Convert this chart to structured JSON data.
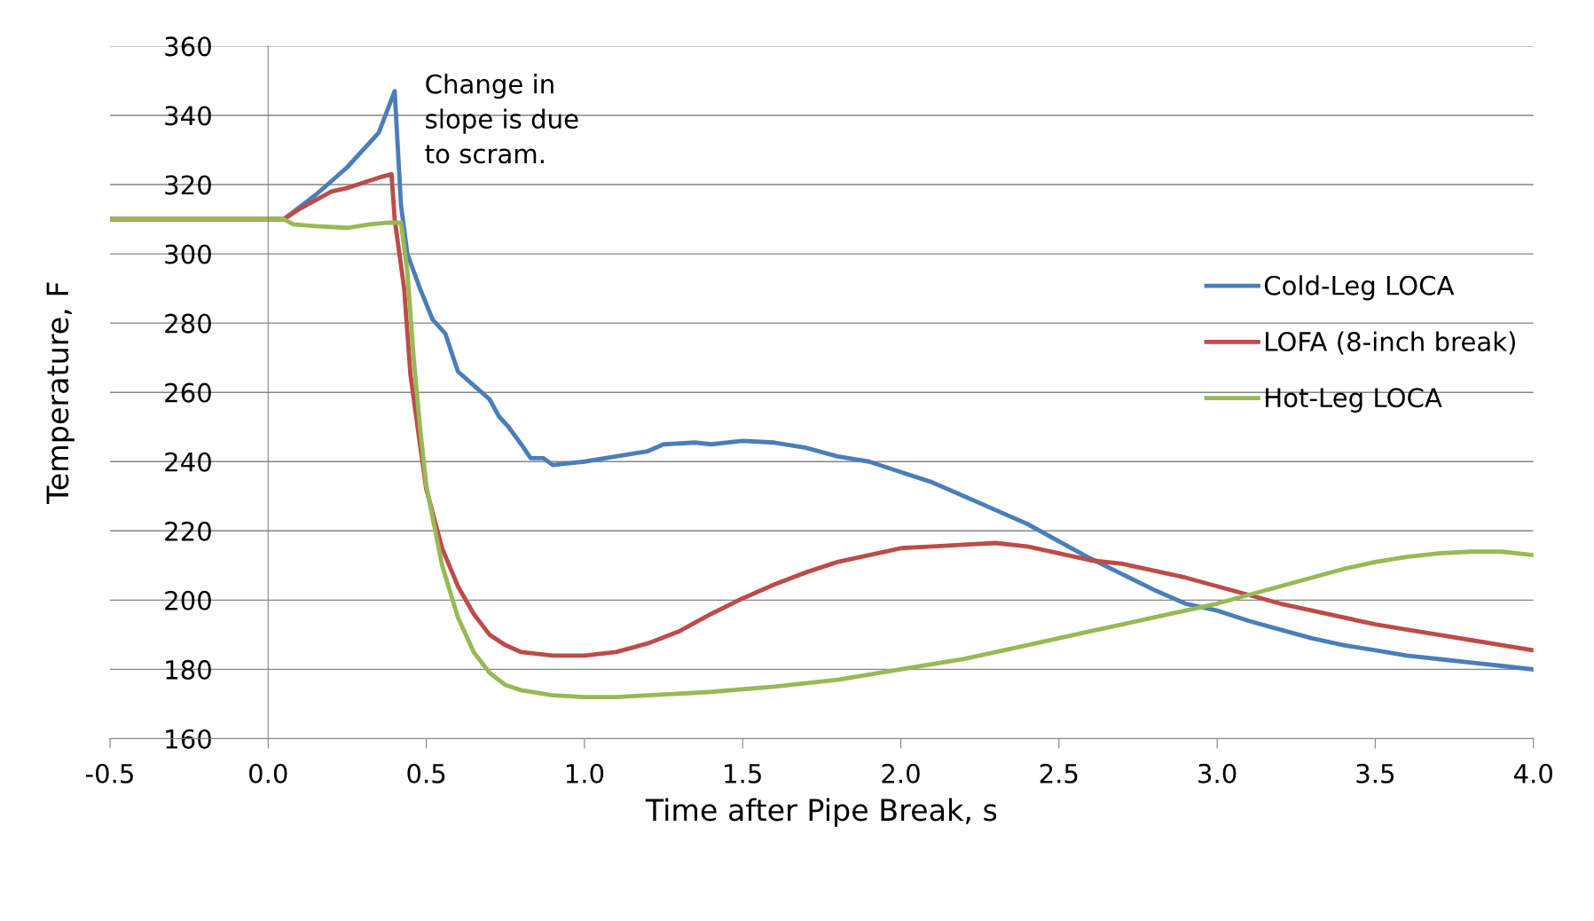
{
  "chart_data": {
    "type": "line",
    "xlabel": "Time after Pipe Break, s",
    "ylabel": "Temperature, F",
    "xlim": [
      -0.5,
      4.0
    ],
    "xticks": [
      {
        "value": -0.5,
        "label": "-0.5"
      },
      {
        "value": 0,
        "label": "0.0"
      },
      {
        "value": 0.5,
        "label": "0.5"
      },
      {
        "value": 1,
        "label": "1.0"
      },
      {
        "value": 1.5,
        "label": "1.5"
      },
      {
        "value": 2,
        "label": "2.0"
      },
      {
        "value": 2.5,
        "label": "2.5"
      },
      {
        "value": 3,
        "label": "3.0"
      },
      {
        "value": 3.5,
        "label": "3.5"
      },
      {
        "value": 4,
        "label": "4.0"
      }
    ],
    "ylim": [
      160,
      360
    ],
    "yticks": [
      160,
      180,
      200,
      220,
      240,
      260,
      280,
      300,
      320,
      340,
      360
    ],
    "grid": "y",
    "legend": "right",
    "marker": "none",
    "line_style": "solid",
    "annotations": [
      "Change in\nslope is due\nto scram."
    ],
    "series": [
      {
        "name": "Cold-Leg LOCA",
        "color": "#4a7ebb",
        "x": [
          -0.5,
          0.0,
          0.05,
          0.15,
          0.25,
          0.35,
          0.4,
          0.42,
          0.44,
          0.48,
          0.52,
          0.56,
          0.6,
          0.65,
          0.7,
          0.73,
          0.76,
          0.8,
          0.83,
          0.87,
          0.9,
          0.95,
          1.0,
          1.1,
          1.2,
          1.25,
          1.35,
          1.4,
          1.5,
          1.6,
          1.7,
          1.8,
          1.9,
          2.0,
          2.1,
          2.2,
          2.3,
          2.4,
          2.5,
          2.6,
          2.7,
          2.8,
          2.9,
          3.0,
          3.1,
          3.2,
          3.3,
          3.4,
          3.5,
          3.6,
          3.7,
          3.8,
          3.9,
          4.0
        ],
        "values": [
          310,
          310,
          310,
          317,
          325,
          335,
          347,
          314,
          300,
          290,
          281,
          277,
          266,
          262,
          258,
          253,
          250,
          245,
          241,
          241,
          239,
          239.5,
          240,
          241.5,
          243,
          245,
          245.5,
          245,
          246,
          245.5,
          244,
          241.5,
          240,
          237,
          234,
          230,
          226,
          222,
          217,
          212,
          207.5,
          203,
          199,
          197,
          194,
          191.5,
          189,
          187,
          185.5,
          184,
          183,
          182,
          181,
          180
        ]
      },
      {
        "name": "LOFA (8-inch break)",
        "color": "#be4b48",
        "x": [
          -0.5,
          0.0,
          0.05,
          0.1,
          0.15,
          0.2,
          0.25,
          0.3,
          0.35,
          0.39,
          0.4,
          0.43,
          0.45,
          0.48,
          0.5,
          0.55,
          0.6,
          0.65,
          0.7,
          0.75,
          0.8,
          0.9,
          1.0,
          1.1,
          1.2,
          1.3,
          1.4,
          1.5,
          1.6,
          1.7,
          1.8,
          1.9,
          2.0,
          2.1,
          2.2,
          2.3,
          2.4,
          2.5,
          2.6,
          2.7,
          2.8,
          2.9,
          3.0,
          3.1,
          3.2,
          3.3,
          3.4,
          3.5,
          3.6,
          3.7,
          3.8,
          3.9,
          4.0
        ],
        "values": [
          310,
          310,
          310,
          313,
          315.5,
          318,
          319,
          320.5,
          322,
          323,
          310,
          290,
          265,
          245,
          232,
          215,
          204,
          196,
          190,
          187,
          185,
          184,
          184,
          185,
          187.5,
          191,
          196,
          200.5,
          204.5,
          208,
          211,
          213,
          215,
          215.5,
          216,
          216.5,
          215.5,
          213.5,
          211.5,
          210.5,
          208.5,
          206.5,
          204,
          201.5,
          199,
          197,
          195,
          193,
          191.5,
          190,
          188.5,
          187,
          185.5
        ]
      },
      {
        "name": "Hot-Leg LOCA",
        "color": "#98b954",
        "x": [
          -0.5,
          0.0,
          0.05,
          0.08,
          0.15,
          0.25,
          0.32,
          0.38,
          0.42,
          0.44,
          0.46,
          0.48,
          0.5,
          0.55,
          0.6,
          0.65,
          0.7,
          0.75,
          0.8,
          0.9,
          1.0,
          1.1,
          1.2,
          1.4,
          1.6,
          1.8,
          2.0,
          2.2,
          2.4,
          2.6,
          2.8,
          3.0,
          3.2,
          3.4,
          3.5,
          3.6,
          3.7,
          3.8,
          3.9,
          4.0
        ],
        "values": [
          310,
          310,
          310,
          308.5,
          308,
          307.5,
          308.5,
          309,
          309,
          295,
          270,
          250,
          233,
          210,
          195,
          185,
          179,
          175.5,
          174,
          172.5,
          172,
          172,
          172.5,
          173.5,
          175,
          177,
          180,
          183,
          187,
          191,
          195,
          199,
          204,
          209,
          211,
          212.5,
          213.5,
          214,
          214,
          213
        ]
      }
    ]
  }
}
